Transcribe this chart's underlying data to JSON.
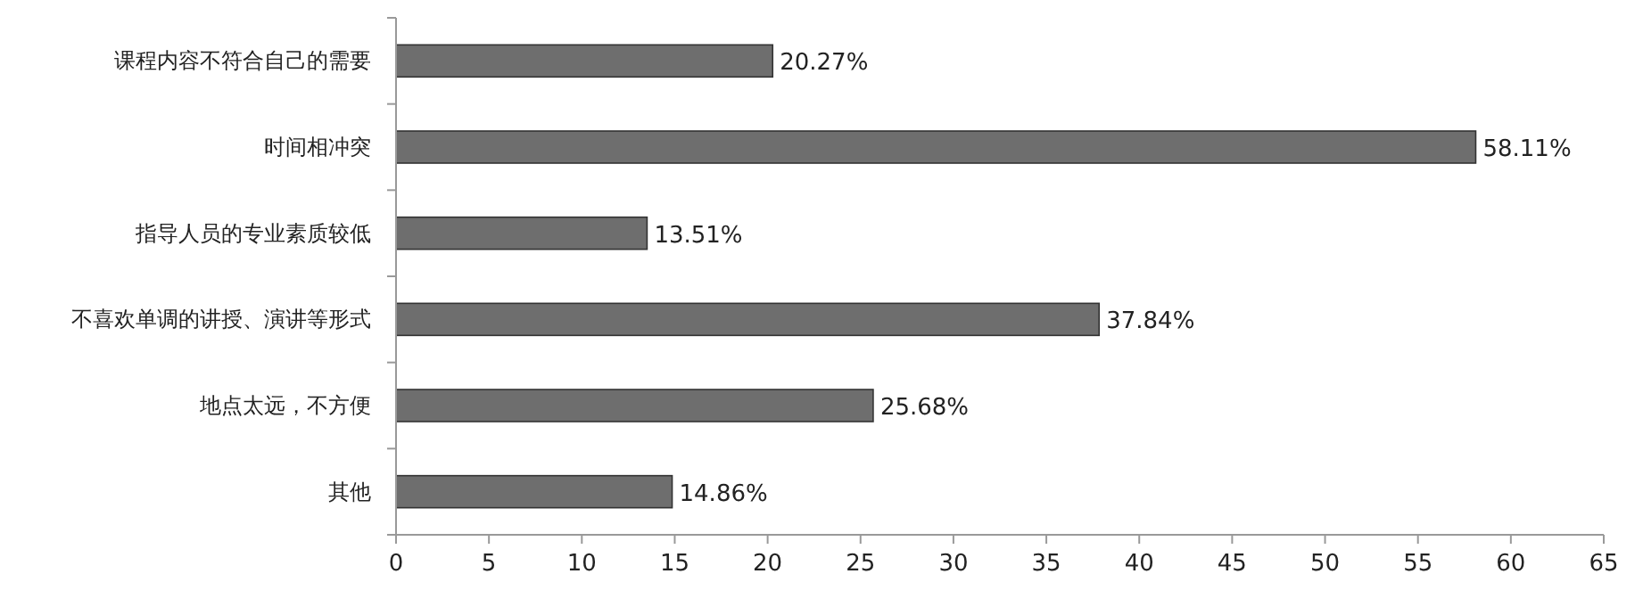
{
  "chart_data": {
    "type": "bar",
    "orientation": "horizontal",
    "categories": [
      "课程内容不符合自己的需要",
      "时间相冲突",
      "指导人员的专业素质较低",
      "不喜欢单调的讲授、演讲等形式",
      "地点太远，不方便",
      "其他"
    ],
    "values": [
      20.27,
      58.11,
      13.51,
      37.84,
      25.68,
      14.86
    ],
    "value_labels": [
      "20.27%",
      "58.11%",
      "13.51%",
      "37.84%",
      "25.68%",
      "14.86%"
    ],
    "color": "#6e6e6e",
    "xlim": [
      0,
      65
    ],
    "xticks": [
      0,
      5,
      10,
      15,
      20,
      25,
      30,
      35,
      40,
      45,
      50,
      55,
      60,
      65
    ],
    "grid": false
  }
}
